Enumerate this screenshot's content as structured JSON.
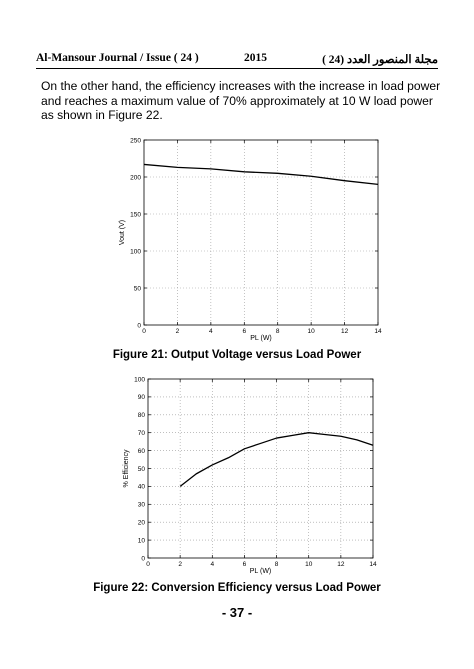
{
  "header": {
    "left": "Al-Mansour Journal /  Issue ( 24 )",
    "year": "2015",
    "right": "مجلة المنصور العدد (24 )"
  },
  "paragraph": {
    "lines": [
      "On the other hand, the efficiency increases with the increase in load power",
      "and reaches a maximum value of 70% approximately at 10 W load power",
      "as shown in Figure 22."
    ]
  },
  "figures": [
    {
      "caption": "Figure 21: Output Voltage versus Load Power",
      "chart_data": {
        "type": "line",
        "xlabel": "PL (W)",
        "ylabel": "Vout (V)",
        "xlim": [
          0,
          14
        ],
        "ylim": [
          0,
          250
        ],
        "xticks": [
          0,
          2,
          4,
          6,
          8,
          10,
          12,
          14
        ],
        "yticks": [
          0,
          50,
          100,
          150,
          200,
          250
        ],
        "grid": "dotted",
        "series": [
          {
            "x": [
              0,
              2,
              4,
              6,
              8,
              10,
              12,
              14
            ],
            "values": [
              217,
              213,
              211,
              207,
              205,
              201,
              195,
              190
            ]
          }
        ]
      }
    },
    {
      "caption": "Figure 22: Conversion Efficiency versus Load Power",
      "chart_data": {
        "type": "line",
        "xlabel": "PL (W)",
        "ylabel": "% Efficiency",
        "xlim": [
          0,
          14
        ],
        "ylim": [
          0,
          100
        ],
        "xticks": [
          0,
          2,
          4,
          6,
          8,
          10,
          12,
          14
        ],
        "yticks": [
          0,
          10,
          20,
          30,
          40,
          50,
          60,
          70,
          80,
          90,
          100
        ],
        "grid": "dotted",
        "series": [
          {
            "x": [
              2,
              3,
              4,
              5,
              6,
              7,
              8,
              9,
              10,
              11,
              12,
              13,
              14
            ],
            "values": [
              40,
              47,
              52,
              56,
              61,
              64,
              67,
              68.5,
              70,
              69,
              68,
              66,
              63
            ]
          }
        ]
      }
    }
  ],
  "page_number": "- 37 -"
}
